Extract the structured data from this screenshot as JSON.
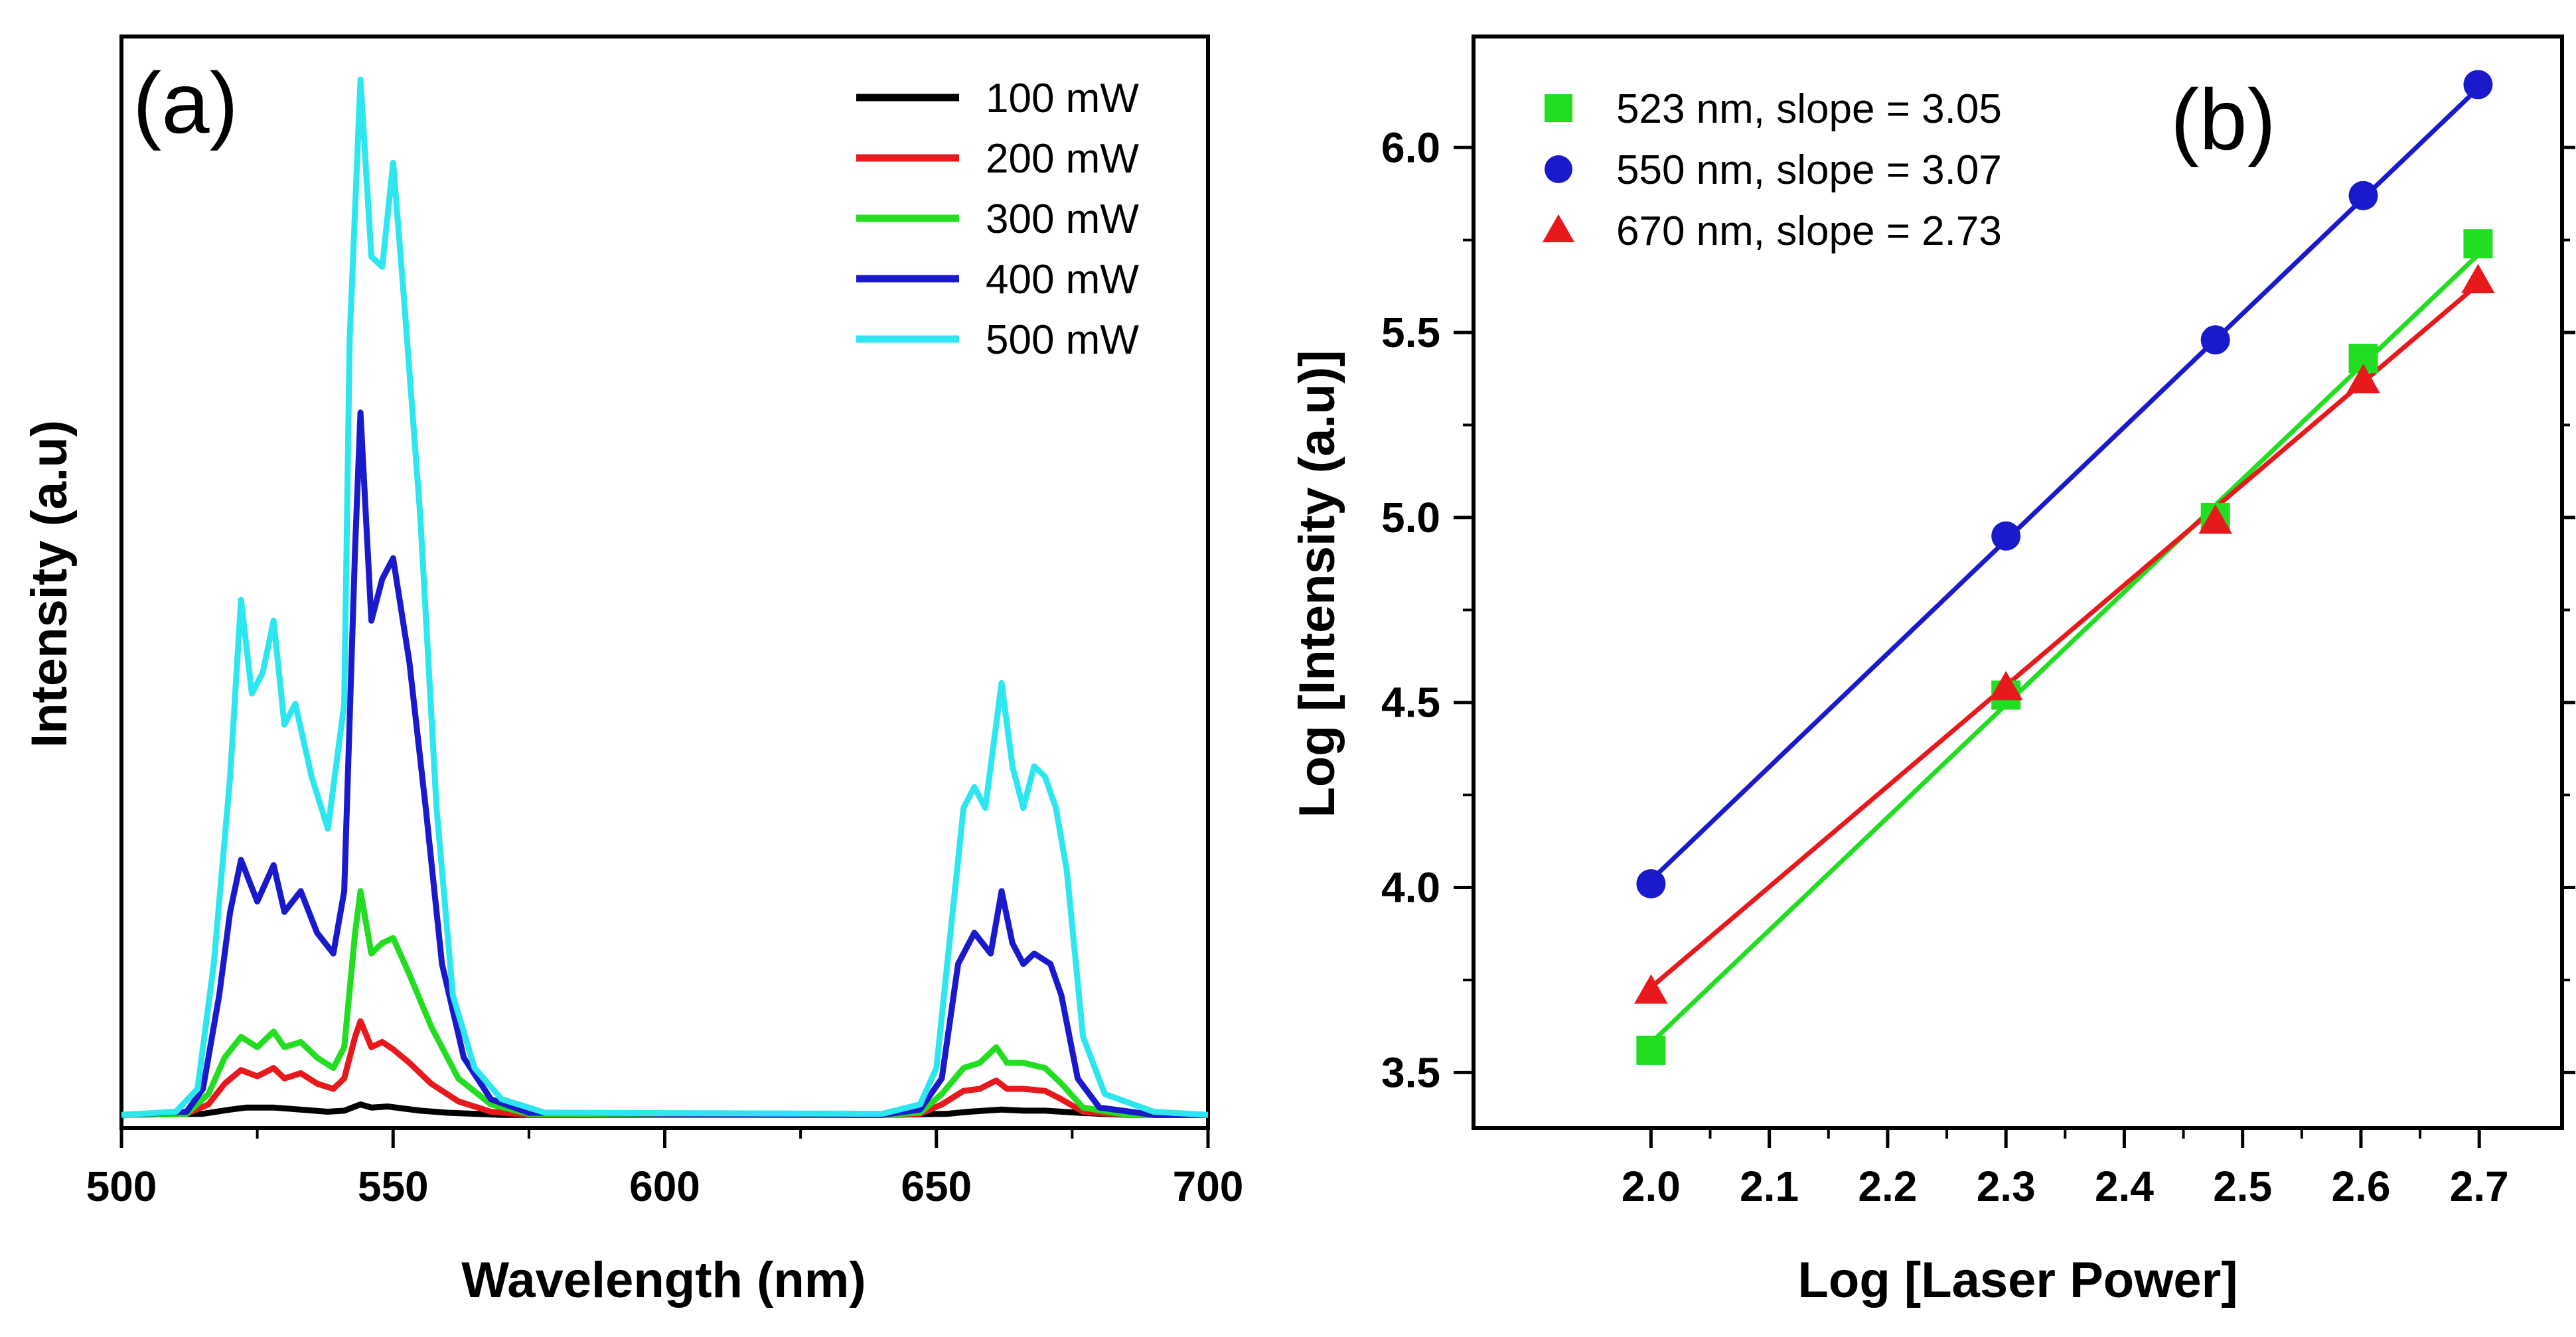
{
  "chart_data": [
    {
      "type": "line",
      "panel_label": "(a)",
      "xlabel": "Wavelength (nm)",
      "ylabel": "Intensity (a.u)",
      "xlim": [
        500,
        700
      ],
      "ylim": [
        0,
        1.0
      ],
      "x_ticks": [
        "500",
        "550",
        "600",
        "650",
        "700"
      ],
      "y_tick_labels_shown": false,
      "legend_position": "top-right",
      "series": [
        {
          "name": "100 mW",
          "color": "#000000",
          "points": [
            [
              500,
              0.005
            ],
            [
              515,
              0.006
            ],
            [
              520,
              0.01
            ],
            [
              523,
              0.012
            ],
            [
              528,
              0.012
            ],
            [
              533,
              0.01
            ],
            [
              538,
              0.008
            ],
            [
              541,
              0.009
            ],
            [
              544,
              0.015
            ],
            [
              546,
              0.012
            ],
            [
              549,
              0.013
            ],
            [
              555,
              0.009
            ],
            [
              560,
              0.007
            ],
            [
              570,
              0.005
            ],
            [
              640,
              0.005
            ],
            [
              652,
              0.006
            ],
            [
              656,
              0.008
            ],
            [
              659,
              0.009
            ],
            [
              662,
              0.01
            ],
            [
              666,
              0.009
            ],
            [
              670,
              0.009
            ],
            [
              676,
              0.007
            ],
            [
              685,
              0.005
            ],
            [
              700,
              0.005
            ]
          ]
        },
        {
          "name": "200 mW",
          "color": "#e8191d",
          "points": [
            [
              500,
              0.005
            ],
            [
              512,
              0.006
            ],
            [
              516,
              0.015
            ],
            [
              519,
              0.035
            ],
            [
              522,
              0.048
            ],
            [
              525,
              0.042
            ],
            [
              528,
              0.05
            ],
            [
              530,
              0.04
            ],
            [
              533,
              0.045
            ],
            [
              536,
              0.035
            ],
            [
              539,
              0.03
            ],
            [
              541,
              0.04
            ],
            [
              543,
              0.08
            ],
            [
              544,
              0.095
            ],
            [
              546,
              0.07
            ],
            [
              548,
              0.075
            ],
            [
              550,
              0.068
            ],
            [
              553,
              0.055
            ],
            [
              557,
              0.035
            ],
            [
              562,
              0.018
            ],
            [
              568,
              0.008
            ],
            [
              575,
              0.005
            ],
            [
              640,
              0.005
            ],
            [
              647,
              0.006
            ],
            [
              651,
              0.015
            ],
            [
              655,
              0.028
            ],
            [
              658,
              0.03
            ],
            [
              661,
              0.038
            ],
            [
              663,
              0.03
            ],
            [
              666,
              0.03
            ],
            [
              670,
              0.028
            ],
            [
              673,
              0.02
            ],
            [
              677,
              0.008
            ],
            [
              685,
              0.005
            ],
            [
              700,
              0.005
            ]
          ]
        },
        {
          "name": "300 mW",
          "color": "#22dd22",
          "points": [
            [
              500,
              0.005
            ],
            [
              512,
              0.006
            ],
            [
              516,
              0.025
            ],
            [
              519,
              0.06
            ],
            [
              522,
              0.08
            ],
            [
              525,
              0.07
            ],
            [
              528,
              0.085
            ],
            [
              530,
              0.07
            ],
            [
              533,
              0.075
            ],
            [
              536,
              0.06
            ],
            [
              539,
              0.05
            ],
            [
              541,
              0.07
            ],
            [
              543,
              0.18
            ],
            [
              544,
              0.22
            ],
            [
              546,
              0.16
            ],
            [
              548,
              0.17
            ],
            [
              550,
              0.175
            ],
            [
              553,
              0.14
            ],
            [
              557,
              0.09
            ],
            [
              562,
              0.04
            ],
            [
              568,
              0.015
            ],
            [
              575,
              0.006
            ],
            [
              640,
              0.005
            ],
            [
              647,
              0.007
            ],
            [
              651,
              0.025
            ],
            [
              655,
              0.05
            ],
            [
              658,
              0.055
            ],
            [
              661,
              0.07
            ],
            [
              663,
              0.055
            ],
            [
              666,
              0.055
            ],
            [
              670,
              0.05
            ],
            [
              673,
              0.035
            ],
            [
              677,
              0.012
            ],
            [
              685,
              0.005
            ],
            [
              700,
              0.005
            ]
          ]
        },
        {
          "name": "400 mW",
          "color": "#1a1acc",
          "points": [
            [
              500,
              0.005
            ],
            [
              512,
              0.008
            ],
            [
              515,
              0.03
            ],
            [
              518,
              0.12
            ],
            [
              520,
              0.2
            ],
            [
              522,
              0.25
            ],
            [
              525,
              0.21
            ],
            [
              528,
              0.245
            ],
            [
              530,
              0.2
            ],
            [
              533,
              0.22
            ],
            [
              536,
              0.18
            ],
            [
              539,
              0.16
            ],
            [
              541,
              0.22
            ],
            [
              543,
              0.55
            ],
            [
              544,
              0.68
            ],
            [
              546,
              0.48
            ],
            [
              548,
              0.52
            ],
            [
              550,
              0.54
            ],
            [
              553,
              0.44
            ],
            [
              556,
              0.3
            ],
            [
              559,
              0.15
            ],
            [
              563,
              0.06
            ],
            [
              568,
              0.02
            ],
            [
              575,
              0.007
            ],
            [
              640,
              0.005
            ],
            [
              647,
              0.01
            ],
            [
              651,
              0.04
            ],
            [
              654,
              0.15
            ],
            [
              657,
              0.18
            ],
            [
              660,
              0.16
            ],
            [
              662,
              0.22
            ],
            [
              664,
              0.17
            ],
            [
              666,
              0.15
            ],
            [
              668,
              0.16
            ],
            [
              671,
              0.15
            ],
            [
              673,
              0.12
            ],
            [
              676,
              0.04
            ],
            [
              680,
              0.012
            ],
            [
              690,
              0.005
            ],
            [
              700,
              0.005
            ]
          ]
        },
        {
          "name": "500 mW",
          "color": "#2ee6f0",
          "points": [
            [
              500,
              0.005
            ],
            [
              510,
              0.008
            ],
            [
              514,
              0.03
            ],
            [
              517,
              0.15
            ],
            [
              520,
              0.33
            ],
            [
              522,
              0.5
            ],
            [
              524,
              0.41
            ],
            [
              526,
              0.43
            ],
            [
              528,
              0.48
            ],
            [
              530,
              0.38
            ],
            [
              532,
              0.4
            ],
            [
              535,
              0.33
            ],
            [
              538,
              0.28
            ],
            [
              541,
              0.4
            ],
            [
              542,
              0.75
            ],
            [
              544,
              1.0
            ],
            [
              546,
              0.83
            ],
            [
              548,
              0.82
            ],
            [
              550,
              0.92
            ],
            [
              552,
              0.79
            ],
            [
              555,
              0.58
            ],
            [
              558,
              0.3
            ],
            [
              561,
              0.12
            ],
            [
              565,
              0.05
            ],
            [
              570,
              0.02
            ],
            [
              578,
              0.007
            ],
            [
              640,
              0.006
            ],
            [
              647,
              0.015
            ],
            [
              650,
              0.05
            ],
            [
              653,
              0.2
            ],
            [
              655,
              0.3
            ],
            [
              657,
              0.32
            ],
            [
              659,
              0.3
            ],
            [
              661,
              0.38
            ],
            [
              662,
              0.42
            ],
            [
              664,
              0.34
            ],
            [
              666,
              0.3
            ],
            [
              668,
              0.34
            ],
            [
              670,
              0.33
            ],
            [
              672,
              0.3
            ],
            [
              674,
              0.24
            ],
            [
              677,
              0.08
            ],
            [
              681,
              0.025
            ],
            [
              690,
              0.008
            ],
            [
              700,
              0.005
            ]
          ]
        }
      ]
    },
    {
      "type": "scatter",
      "panel_label": "(b)",
      "xlabel": "Log [Laser Power]",
      "ylabel": "Log [Intensity (a.u)]",
      "xlim": [
        1.85,
        2.77
      ],
      "ylim": [
        3.35,
        6.3
      ],
      "x_ticks": [
        "2.0",
        "2.1",
        "2.2",
        "2.3",
        "2.4",
        "2.5",
        "2.6",
        "2.7"
      ],
      "y_ticks": [
        "3.5",
        "4.0",
        "4.5",
        "5.0",
        "5.5",
        "6.0"
      ],
      "legend_position": "top-left",
      "fit_lines": true,
      "series": [
        {
          "name": "523 nm, slope = 3.05",
          "color": "#22dd22",
          "marker": "square",
          "x": [
            2.0,
            2.3,
            2.477,
            2.602,
            2.699
          ],
          "y": [
            3.56,
            4.52,
            5.0,
            5.43,
            5.74
          ],
          "fit": [
            [
              2.0,
              3.58
            ],
            [
              2.699,
              5.71
            ]
          ]
        },
        {
          "name": "550 nm, slope = 3.07",
          "color": "#1a1acc",
          "marker": "circle",
          "x": [
            2.0,
            2.3,
            2.477,
            2.602,
            2.699
          ],
          "y": [
            4.01,
            4.95,
            5.48,
            5.87,
            6.17
          ],
          "fit": [
            [
              2.0,
              4.02
            ],
            [
              2.699,
              6.16
            ]
          ]
        },
        {
          "name": "670 nm, slope = 2.73",
          "color": "#e8191d",
          "marker": "triangle",
          "x": [
            2.0,
            2.3,
            2.477,
            2.602,
            2.699
          ],
          "y": [
            3.72,
            4.54,
            4.99,
            5.37,
            5.64
          ],
          "fit": [
            [
              2.0,
              3.73
            ],
            [
              2.699,
              5.63
            ]
          ]
        }
      ]
    }
  ]
}
